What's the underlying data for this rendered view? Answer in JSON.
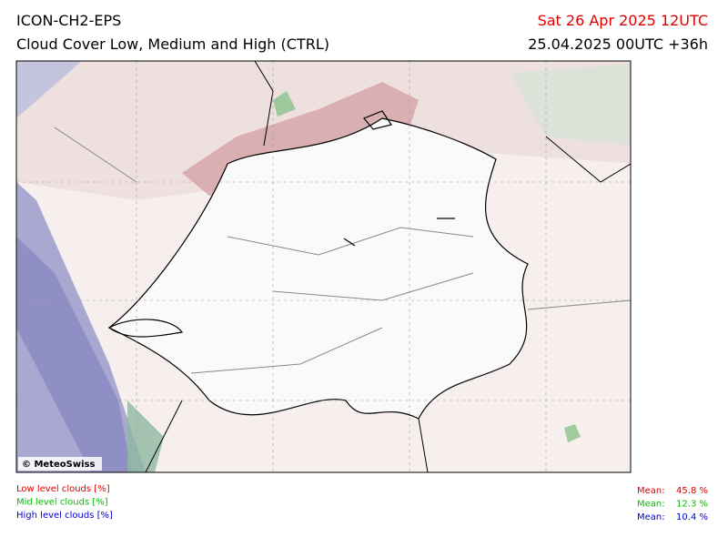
{
  "header": {
    "model": "ICON-CH2-EPS",
    "title": "Cloud Cover Low, Medium and High (CTRL)",
    "valid": "Sat 26 Apr 2025 12UTC",
    "run": "25.04.2025 00UTC +36h"
  },
  "map": {
    "copyright": "© MeteoSwiss"
  },
  "legend": [
    {
      "label": "Low level clouds [%]",
      "mean_label": "Mean:",
      "mean": "45.8 %",
      "color": "#e00000"
    },
    {
      "label": "Mid level clouds [%]",
      "mean_label": "Mean:",
      "mean": "12.3 %",
      "color": "#00c000"
    },
    {
      "label": "High level clouds [%]",
      "mean_label": "Mean:",
      "mean": "10.4 %",
      "color": "#0000d0"
    }
  ]
}
